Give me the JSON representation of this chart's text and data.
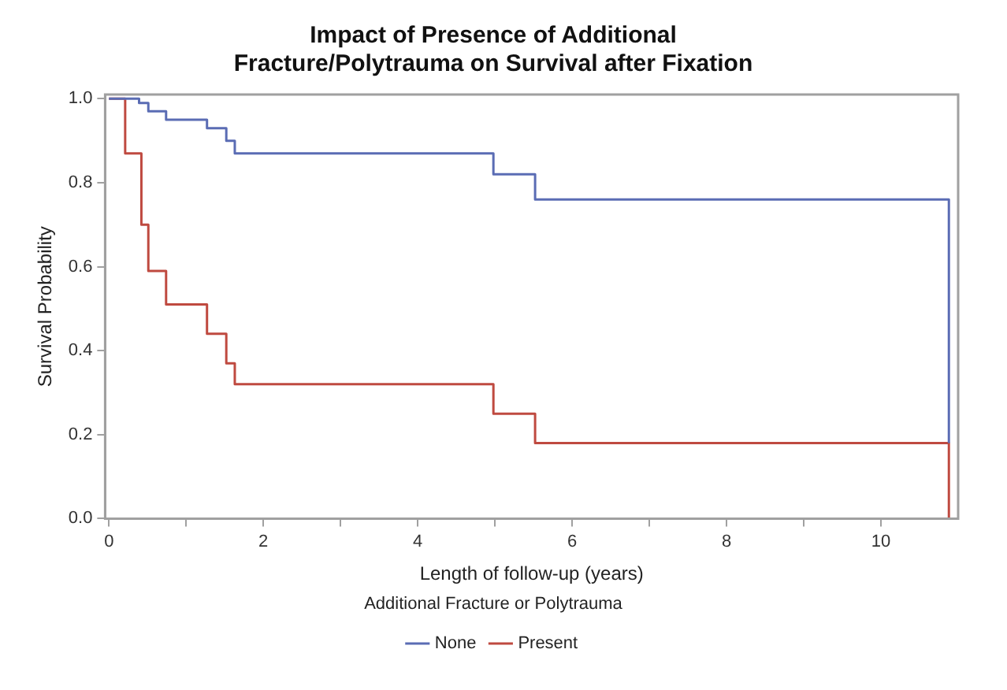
{
  "chart_data": {
    "type": "step",
    "title": "Impact of Presence of Additional Fracture/Polytrauma on Survival after Fixation",
    "xlabel": "Length of follow-up (years)",
    "ylabel": "Survival Probability",
    "legend_title": "Additional Fracture or Polytrauma",
    "legend": "bottom",
    "grid": false,
    "xlim": [
      -0.05,
      11
    ],
    "xticks": [
      0,
      {
        "value": 1,
        "label": null
      },
      2,
      {
        "value": 3,
        "label": null
      },
      4,
      {
        "value": 5,
        "label": null
      },
      6,
      {
        "value": 7,
        "label": null
      },
      8,
      {
        "value": 9,
        "label": null
      },
      10
    ],
    "ylim": [
      0,
      1.01
    ],
    "yticks": [
      {
        "value": 0,
        "label": "0.0"
      },
      0.2,
      0.4,
      0.6,
      0.8,
      {
        "value": 1,
        "label": "1.0"
      }
    ],
    "series": [
      {
        "name": "None",
        "color": "#5a6cb4",
        "x": [
          0,
          0.39,
          0.51,
          0.74,
          1.27,
          1.52,
          1.63,
          4.98,
          5.52,
          10.88
        ],
        "values": [
          1,
          0.99,
          0.97,
          0.95,
          0.93,
          0.9,
          0.87,
          0.82,
          0.76,
          0.18
        ]
      },
      {
        "name": "Present",
        "color": "#bf4a40",
        "x": [
          0,
          0.21,
          0.42,
          0.51,
          0.74,
          1.27,
          1.52,
          1.63,
          4.98,
          5.52,
          10.88
        ],
        "values": [
          1,
          0.87,
          0.7,
          0.59,
          0.51,
          0.44,
          0.37,
          0.32,
          0.25,
          0.18,
          0
        ]
      }
    ]
  }
}
